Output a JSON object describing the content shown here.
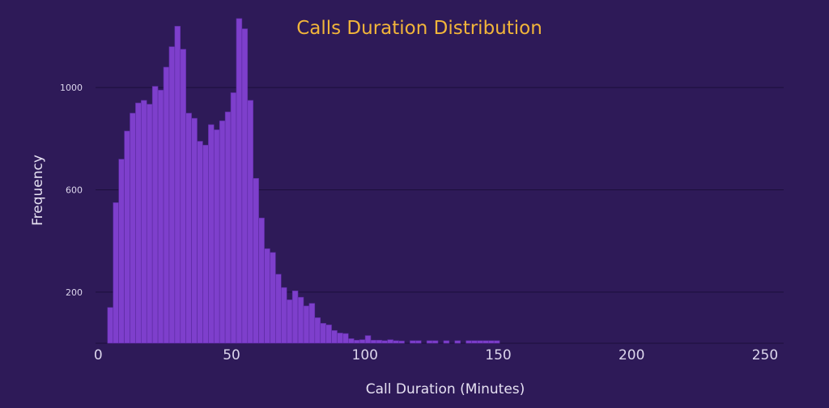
{
  "colors": {
    "background": "#2e1a58",
    "bar": "#7e3fcc",
    "bar_edge": "#5a2a9e",
    "title": "#f2b53a",
    "gridline": "#1c0f3b",
    "text": "#dcd6ec"
  },
  "chart_data": {
    "type": "bar",
    "title": "Calls Duration Distribution",
    "xlabel": "Call Duration (Minutes)",
    "ylabel": "Frequency",
    "xlim": [
      -1,
      257
    ],
    "ylim": [
      0,
      1200
    ],
    "xticks": [
      0,
      50,
      100,
      150,
      200,
      250
    ],
    "yticks": [
      200,
      600,
      1000
    ],
    "grid": "horizontal",
    "legend": "none",
    "bin_width": 2.1,
    "bin_start": 3.5,
    "values": [
      140,
      550,
      720,
      830,
      900,
      940,
      950,
      935,
      1005,
      990,
      1080,
      1160,
      1240,
      1150,
      900,
      880,
      790,
      775,
      855,
      835,
      870,
      905,
      980,
      1270,
      1230,
      950,
      645,
      490,
      370,
      355,
      270,
      218,
      170,
      205,
      180,
      146,
      156,
      100,
      78,
      72,
      50,
      40,
      38,
      18,
      12,
      14,
      30,
      12,
      12,
      10,
      14,
      10,
      9,
      0,
      10,
      10,
      0,
      10,
      10,
      0,
      10,
      0,
      10,
      0,
      10,
      10,
      10,
      10,
      10,
      10,
      0,
      0,
      0,
      0
    ]
  }
}
